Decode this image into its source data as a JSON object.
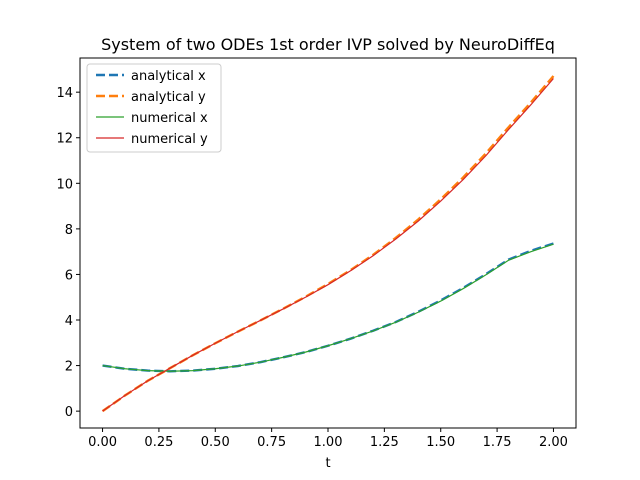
{
  "chart_data": {
    "type": "line",
    "title": "System of two ODEs 1st order IVP solved by NeuroDiffEq",
    "xlabel": "t",
    "ylabel": "",
    "xlim": [
      -0.1,
      2.1
    ],
    "ylim": [
      -0.74,
      15.5
    ],
    "xticks": [
      0.0,
      0.25,
      0.5,
      0.75,
      1.0,
      1.25,
      1.5,
      1.75,
      2.0
    ],
    "xtick_labels": [
      "0.00",
      "0.25",
      "0.50",
      "0.75",
      "1.00",
      "1.25",
      "1.50",
      "1.75",
      "2.00"
    ],
    "yticks": [
      0,
      2,
      4,
      6,
      8,
      10,
      12,
      14
    ],
    "ytick_labels": [
      "0",
      "2",
      "4",
      "6",
      "8",
      "10",
      "12",
      "14"
    ],
    "grid": false,
    "legend_position": "top-left",
    "x": [
      0.0,
      0.1,
      0.2,
      0.3,
      0.4,
      0.5,
      0.6,
      0.7,
      0.8,
      0.9,
      1.0,
      1.1,
      1.2,
      1.3,
      1.4,
      1.5,
      1.6,
      1.7,
      1.8,
      1.9,
      2.0
    ],
    "series": [
      {
        "name": "analytical x",
        "style": "dashed",
        "color": "#1f77b4",
        "values": [
          2.0,
          1.86,
          1.78,
          1.75,
          1.78,
          1.86,
          1.98,
          2.15,
          2.36,
          2.59,
          2.87,
          3.18,
          3.53,
          3.91,
          4.36,
          4.86,
          5.41,
          6.01,
          6.65,
          7.04,
          7.36
        ]
      },
      {
        "name": "analytical y",
        "style": "dashed",
        "color": "#ff7f0e",
        "values": [
          0.0,
          0.69,
          1.33,
          1.89,
          2.45,
          2.98,
          3.49,
          3.98,
          4.49,
          5.02,
          5.58,
          6.19,
          6.86,
          7.6,
          8.41,
          9.3,
          10.26,
          11.31,
          12.45,
          13.55,
          14.71
        ]
      },
      {
        "name": "numerical x",
        "style": "solid",
        "color": "#2ca02c",
        "values": [
          2.0,
          1.86,
          1.78,
          1.75,
          1.78,
          1.86,
          1.98,
          2.15,
          2.36,
          2.59,
          2.87,
          3.18,
          3.52,
          3.9,
          4.34,
          4.83,
          5.38,
          5.98,
          6.62,
          7.0,
          7.33
        ]
      },
      {
        "name": "numerical y",
        "style": "solid",
        "color": "#d62728",
        "values": [
          0.0,
          0.69,
          1.33,
          1.89,
          2.45,
          2.98,
          3.49,
          3.98,
          4.48,
          5.0,
          5.55,
          6.16,
          6.82,
          7.55,
          8.34,
          9.22,
          10.17,
          11.21,
          12.35,
          13.45,
          14.6
        ]
      }
    ]
  }
}
